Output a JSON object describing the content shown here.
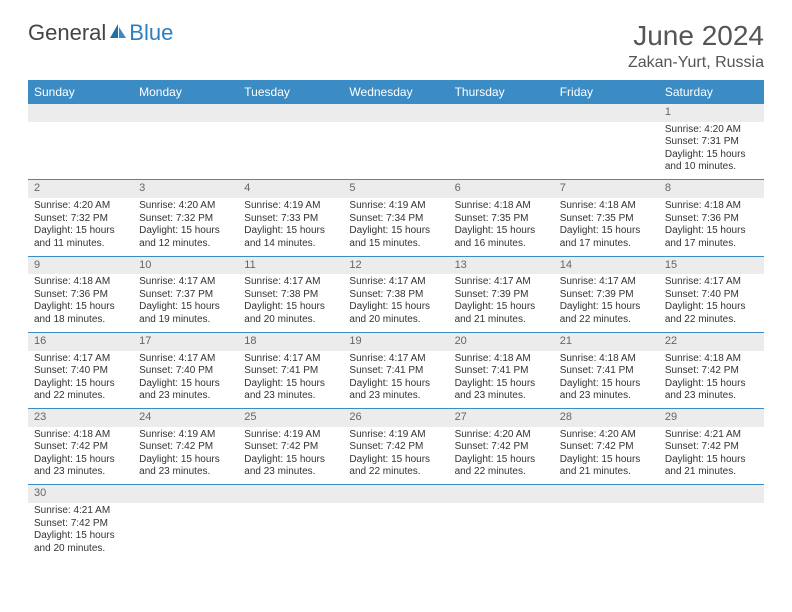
{
  "brand": {
    "part1": "General",
    "part2": "Blue"
  },
  "title": "June 2024",
  "location": "Zakan-Yurt, Russia",
  "colors": {
    "header_bg": "#3b8bc5",
    "header_text": "#ffffff",
    "daynum_bg": "#ececec",
    "daynum_text": "#666666",
    "cell_border": "#3b8bc5",
    "body_text": "#333333",
    "title_text": "#555555",
    "brand_blue": "#2f7fbf"
  },
  "day_headers": [
    "Sunday",
    "Monday",
    "Tuesday",
    "Wednesday",
    "Thursday",
    "Friday",
    "Saturday"
  ],
  "weeks": [
    {
      "nums": [
        "",
        "",
        "",
        "",
        "",
        "",
        "1"
      ],
      "cells": [
        null,
        null,
        null,
        null,
        null,
        null,
        {
          "sunrise": "Sunrise: 4:20 AM",
          "sunset": "Sunset: 7:31 PM",
          "daylight": "Daylight: 15 hours and 10 minutes."
        }
      ]
    },
    {
      "nums": [
        "2",
        "3",
        "4",
        "5",
        "6",
        "7",
        "8"
      ],
      "cells": [
        {
          "sunrise": "Sunrise: 4:20 AM",
          "sunset": "Sunset: 7:32 PM",
          "daylight": "Daylight: 15 hours and 11 minutes."
        },
        {
          "sunrise": "Sunrise: 4:20 AM",
          "sunset": "Sunset: 7:32 PM",
          "daylight": "Daylight: 15 hours and 12 minutes."
        },
        {
          "sunrise": "Sunrise: 4:19 AM",
          "sunset": "Sunset: 7:33 PM",
          "daylight": "Daylight: 15 hours and 14 minutes."
        },
        {
          "sunrise": "Sunrise: 4:19 AM",
          "sunset": "Sunset: 7:34 PM",
          "daylight": "Daylight: 15 hours and 15 minutes."
        },
        {
          "sunrise": "Sunrise: 4:18 AM",
          "sunset": "Sunset: 7:35 PM",
          "daylight": "Daylight: 15 hours and 16 minutes."
        },
        {
          "sunrise": "Sunrise: 4:18 AM",
          "sunset": "Sunset: 7:35 PM",
          "daylight": "Daylight: 15 hours and 17 minutes."
        },
        {
          "sunrise": "Sunrise: 4:18 AM",
          "sunset": "Sunset: 7:36 PM",
          "daylight": "Daylight: 15 hours and 17 minutes."
        }
      ]
    },
    {
      "nums": [
        "9",
        "10",
        "11",
        "12",
        "13",
        "14",
        "15"
      ],
      "cells": [
        {
          "sunrise": "Sunrise: 4:18 AM",
          "sunset": "Sunset: 7:36 PM",
          "daylight": "Daylight: 15 hours and 18 minutes."
        },
        {
          "sunrise": "Sunrise: 4:17 AM",
          "sunset": "Sunset: 7:37 PM",
          "daylight": "Daylight: 15 hours and 19 minutes."
        },
        {
          "sunrise": "Sunrise: 4:17 AM",
          "sunset": "Sunset: 7:38 PM",
          "daylight": "Daylight: 15 hours and 20 minutes."
        },
        {
          "sunrise": "Sunrise: 4:17 AM",
          "sunset": "Sunset: 7:38 PM",
          "daylight": "Daylight: 15 hours and 20 minutes."
        },
        {
          "sunrise": "Sunrise: 4:17 AM",
          "sunset": "Sunset: 7:39 PM",
          "daylight": "Daylight: 15 hours and 21 minutes."
        },
        {
          "sunrise": "Sunrise: 4:17 AM",
          "sunset": "Sunset: 7:39 PM",
          "daylight": "Daylight: 15 hours and 22 minutes."
        },
        {
          "sunrise": "Sunrise: 4:17 AM",
          "sunset": "Sunset: 7:40 PM",
          "daylight": "Daylight: 15 hours and 22 minutes."
        }
      ]
    },
    {
      "nums": [
        "16",
        "17",
        "18",
        "19",
        "20",
        "21",
        "22"
      ],
      "cells": [
        {
          "sunrise": "Sunrise: 4:17 AM",
          "sunset": "Sunset: 7:40 PM",
          "daylight": "Daylight: 15 hours and 22 minutes."
        },
        {
          "sunrise": "Sunrise: 4:17 AM",
          "sunset": "Sunset: 7:40 PM",
          "daylight": "Daylight: 15 hours and 23 minutes."
        },
        {
          "sunrise": "Sunrise: 4:17 AM",
          "sunset": "Sunset: 7:41 PM",
          "daylight": "Daylight: 15 hours and 23 minutes."
        },
        {
          "sunrise": "Sunrise: 4:17 AM",
          "sunset": "Sunset: 7:41 PM",
          "daylight": "Daylight: 15 hours and 23 minutes."
        },
        {
          "sunrise": "Sunrise: 4:18 AM",
          "sunset": "Sunset: 7:41 PM",
          "daylight": "Daylight: 15 hours and 23 minutes."
        },
        {
          "sunrise": "Sunrise: 4:18 AM",
          "sunset": "Sunset: 7:41 PM",
          "daylight": "Daylight: 15 hours and 23 minutes."
        },
        {
          "sunrise": "Sunrise: 4:18 AM",
          "sunset": "Sunset: 7:42 PM",
          "daylight": "Daylight: 15 hours and 23 minutes."
        }
      ]
    },
    {
      "nums": [
        "23",
        "24",
        "25",
        "26",
        "27",
        "28",
        "29"
      ],
      "cells": [
        {
          "sunrise": "Sunrise: 4:18 AM",
          "sunset": "Sunset: 7:42 PM",
          "daylight": "Daylight: 15 hours and 23 minutes."
        },
        {
          "sunrise": "Sunrise: 4:19 AM",
          "sunset": "Sunset: 7:42 PM",
          "daylight": "Daylight: 15 hours and 23 minutes."
        },
        {
          "sunrise": "Sunrise: 4:19 AM",
          "sunset": "Sunset: 7:42 PM",
          "daylight": "Daylight: 15 hours and 23 minutes."
        },
        {
          "sunrise": "Sunrise: 4:19 AM",
          "sunset": "Sunset: 7:42 PM",
          "daylight": "Daylight: 15 hours and 22 minutes."
        },
        {
          "sunrise": "Sunrise: 4:20 AM",
          "sunset": "Sunset: 7:42 PM",
          "daylight": "Daylight: 15 hours and 22 minutes."
        },
        {
          "sunrise": "Sunrise: 4:20 AM",
          "sunset": "Sunset: 7:42 PM",
          "daylight": "Daylight: 15 hours and 21 minutes."
        },
        {
          "sunrise": "Sunrise: 4:21 AM",
          "sunset": "Sunset: 7:42 PM",
          "daylight": "Daylight: 15 hours and 21 minutes."
        }
      ]
    },
    {
      "nums": [
        "30",
        "",
        "",
        "",
        "",
        "",
        ""
      ],
      "cells": [
        {
          "sunrise": "Sunrise: 4:21 AM",
          "sunset": "Sunset: 7:42 PM",
          "daylight": "Daylight: 15 hours and 20 minutes."
        },
        null,
        null,
        null,
        null,
        null,
        null
      ]
    }
  ]
}
